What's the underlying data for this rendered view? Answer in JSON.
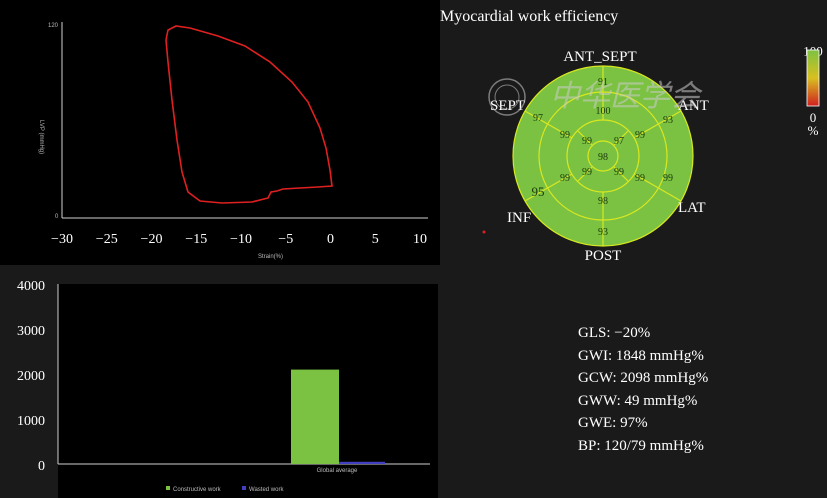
{
  "pv_loop": {
    "type": "line",
    "x_ticks": [
      "−30",
      "−25",
      "−20",
      "−15",
      "−10",
      "−5",
      "0",
      "5",
      "10"
    ],
    "xlabel": "Strain(%)",
    "ylabel": "LVP (mmHg)",
    "y_top_label": "120",
    "y_bottom_label": "0",
    "line_color": "#e02020"
  },
  "bullseye": {
    "title": "Myocardial work efficiency",
    "segment_labels": {
      "ant_sept": "ANT_SEPT",
      "sept": "SEPT",
      "ant": "ANT",
      "inf": "INF",
      "lat": "LAT",
      "post": "POST"
    },
    "scale_max": "100",
    "scale_min": "0",
    "scale_unit": "%",
    "fill_color": "#7cc242",
    "watermark": "中华医学会"
  },
  "chart_data": {
    "type": "bar",
    "categories": [
      "Global average"
    ],
    "series": [
      {
        "name": "Constructive work",
        "values": [
          2098
        ],
        "color": "#7cc242"
      },
      {
        "name": "Wasted work",
        "values": [
          49
        ],
        "color": "#4040c0"
      }
    ],
    "y_ticks": [
      "4000",
      "3000",
      "2000",
      "1000",
      "0"
    ],
    "ylim": [
      0,
      4000
    ],
    "bullseye_values": {
      "outer": [
        "91",
        "93",
        "99",
        "93",
        "95",
        "97"
      ],
      "mid": [
        "100",
        "99",
        "99",
        "98",
        "99",
        "99"
      ],
      "apical": [
        "97",
        "99",
        "99",
        "99"
      ],
      "apex": "98"
    }
  },
  "metrics": [
    "GLS: −20%",
    "GWI:  1848 mmHg%",
    "GCW: 2098 mmHg%",
    "GWW: 49 mmHg%",
    "GWE: 97%",
    "BP: 120/79 mmHg%"
  ]
}
